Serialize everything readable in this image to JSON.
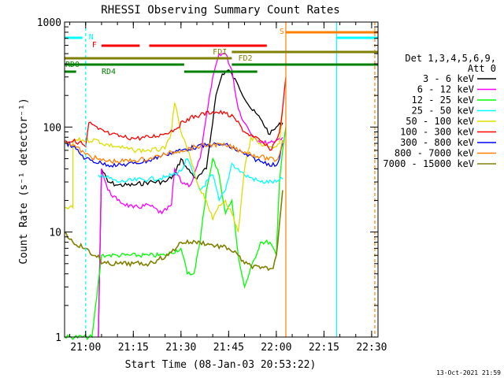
{
  "chart_data": {
    "type": "line",
    "title": "RHESSI Observing Summary Count Rates",
    "xlabel": "Start Time (08-Jan-03 20:53:22)",
    "ylabel": "Count Rate (s⁻¹ detector⁻¹)",
    "y_scale": "log",
    "ylim": [
      1,
      1000
    ],
    "xlim": [
      "20:53:22",
      "22:32:00"
    ],
    "x_ticks": [
      "21:00",
      "21:15",
      "21:30",
      "21:45",
      "22:00",
      "22:15",
      "22:30"
    ],
    "y_ticks": [
      "1",
      "10",
      "100",
      "1000"
    ],
    "grid": false,
    "legend_header": [
      "Det 1,3,4,5,6,9,",
      "Att 0"
    ],
    "legend_position": "right",
    "series": [
      {
        "name": "3 - 6 keV",
        "color": "#000000",
        "x": [
          "21:04",
          "21:05",
          "21:07",
          "21:10",
          "21:15",
          "21:20",
          "21:25",
          "21:28",
          "21:30",
          "21:32",
          "21:35",
          "21:38",
          "21:41",
          "21:43",
          "21:45",
          "21:48",
          "21:52",
          "21:55",
          "21:58",
          "22:00",
          "22:02"
        ],
        "y": [
          1,
          40,
          30,
          28,
          28,
          30,
          30,
          35,
          50,
          40,
          32,
          40,
          200,
          320,
          350,
          250,
          150,
          120,
          85,
          100,
          110
        ]
      },
      {
        "name": "6 - 12 keV",
        "color": "#ff00ff",
        "x": [
          "21:04",
          "21:05",
          "21:07",
          "21:10",
          "21:15",
          "21:20",
          "21:24",
          "21:27",
          "21:28",
          "21:30",
          "21:33",
          "21:36",
          "21:40",
          "21:42",
          "21:44",
          "21:46",
          "21:48",
          "21:50",
          "21:53",
          "21:56",
          "22:00",
          "22:02"
        ],
        "y": [
          1,
          40,
          25,
          20,
          17,
          18,
          15,
          18,
          40,
          30,
          28,
          50,
          300,
          500,
          500,
          350,
          150,
          110,
          80,
          70,
          75,
          80
        ]
      },
      {
        "name": "12 - 25 keV",
        "color": "#00ff00",
        "x": [
          "20:53:22",
          "21:02",
          "21:02",
          "21:05",
          "21:07",
          "21:10",
          "21:20",
          "21:25",
          "21:30",
          "21:32",
          "21:34",
          "21:36",
          "21:38",
          "21:40",
          "21:42",
          "21:44",
          "21:46",
          "21:48",
          "21:50",
          "21:55",
          "21:58",
          "22:00",
          "22:01",
          "22:02",
          "22:03"
        ],
        "y": [
          1,
          1,
          1,
          6,
          6,
          6,
          6,
          6,
          7,
          4,
          4,
          8,
          25,
          50,
          35,
          15,
          20,
          6,
          3,
          8,
          8,
          6,
          30,
          60,
          100
        ]
      },
      {
        "name": "25 - 50 keV",
        "color": "#00ffff",
        "x": [
          "21:04",
          "21:05",
          "21:10",
          "21:20",
          "21:25",
          "21:30",
          "21:32",
          "21:34",
          "21:36",
          "21:40",
          "21:42",
          "21:44",
          "21:46",
          "21:50",
          "21:55",
          "22:00",
          "22:02"
        ],
        "y": [
          35,
          35,
          30,
          32,
          33,
          38,
          50,
          35,
          25,
          35,
          20,
          25,
          45,
          35,
          30,
          30,
          32
        ]
      },
      {
        "name": "50 - 100 keV",
        "color": "#dddd00",
        "x": [
          "20:53:22",
          "20:56",
          "20:56",
          "21:04",
          "21:05",
          "21:10",
          "21:15",
          "21:20",
          "21:25",
          "21:27",
          "21:28",
          "21:30",
          "21:33",
          "21:35",
          "21:38",
          "21:40",
          "21:42",
          "21:44",
          "21:46",
          "21:48",
          "21:50",
          "21:52",
          "21:55",
          "21:58",
          "22:00",
          "22:01",
          "22:02"
        ],
        "y": [
          17,
          17,
          75,
          75,
          70,
          65,
          60,
          60,
          62,
          90,
          170,
          90,
          50,
          30,
          20,
          13,
          18,
          20,
          15,
          10,
          40,
          80,
          70,
          65,
          65,
          70,
          150
        ]
      },
      {
        "name": "100 - 300 keV",
        "color": "#ff0000",
        "x": [
          "20:53:22",
          "20:58",
          "21:00",
          "21:01",
          "21:04",
          "21:08",
          "21:12",
          "21:16",
          "21:20",
          "21:24",
          "21:28",
          "21:32",
          "21:36",
          "21:40",
          "21:44",
          "21:47",
          "21:50",
          "21:53",
          "21:56",
          "21:58",
          "22:00",
          "22:01",
          "22:02",
          "22:03"
        ],
        "y": [
          75,
          72,
          65,
          110,
          95,
          85,
          80,
          78,
          80,
          85,
          95,
          120,
          130,
          140,
          135,
          120,
          90,
          80,
          70,
          60,
          75,
          90,
          150,
          300
        ]
      },
      {
        "name": "300 - 800 keV",
        "color": "#0000ff",
        "x": [
          "20:53:22",
          "20:56",
          "21:00",
          "21:05",
          "21:10",
          "21:15",
          "21:20",
          "21:25",
          "21:30",
          "21:35",
          "21:40",
          "21:43",
          "21:45",
          "21:50",
          "21:55",
          "22:00",
          "22:01",
          "22:02"
        ],
        "y": [
          72,
          65,
          50,
          45,
          43,
          45,
          48,
          55,
          60,
          65,
          68,
          68,
          66,
          55,
          47,
          43,
          50,
          70
        ]
      },
      {
        "name": "800 - 7000 keV",
        "color": "#ff8000",
        "x": [
          "20:53:22",
          "20:56",
          "21:00",
          "21:05",
          "21:10",
          "21:15",
          "21:20",
          "21:25",
          "21:30",
          "21:35",
          "21:40",
          "21:45",
          "21:50",
          "21:55",
          "22:00",
          "22:01",
          "22:02"
        ],
        "y": [
          75,
          68,
          55,
          48,
          47,
          48,
          50,
          55,
          60,
          65,
          68,
          66,
          58,
          52,
          48,
          55,
          75
        ]
      },
      {
        "name": "7000 - 15000 keV",
        "color": "#808000",
        "x": [
          "20:53:22",
          "20:56",
          "21:00",
          "21:02",
          "21:04",
          "21:05",
          "21:10",
          "21:15",
          "21:20",
          "21:23",
          "21:26",
          "21:30",
          "21:33",
          "21:36",
          "21:40",
          "21:45",
          "21:48",
          "21:50",
          "21:55",
          "21:59",
          "22:00",
          "22:01",
          "22:02"
        ],
        "y": [
          10,
          8,
          7,
          6,
          6,
          5,
          5,
          5,
          5,
          5.5,
          6,
          8,
          8,
          8,
          7.5,
          7,
          6,
          5,
          4.5,
          4.5,
          6,
          12,
          25
        ]
      }
    ],
    "annotations": [
      {
        "label": "N",
        "color": "#00ffff",
        "x": "21:00"
      },
      {
        "label": "F",
        "color": "#ff0000",
        "x": "21:05"
      },
      {
        "label": "S",
        "color": "#ff8000",
        "x": "22:03"
      },
      {
        "label": "FDI",
        "color": "#808000",
        "x": "21:42"
      },
      {
        "label": "FD2",
        "color": "#808000",
        "x": "21:47"
      },
      {
        "label": "RD0",
        "color": "#008000",
        "x": "20:54"
      },
      {
        "label": "RD4",
        "color": "#008000",
        "x": "21:02"
      }
    ],
    "timestamp": "13-Oct-2021 21:59"
  }
}
